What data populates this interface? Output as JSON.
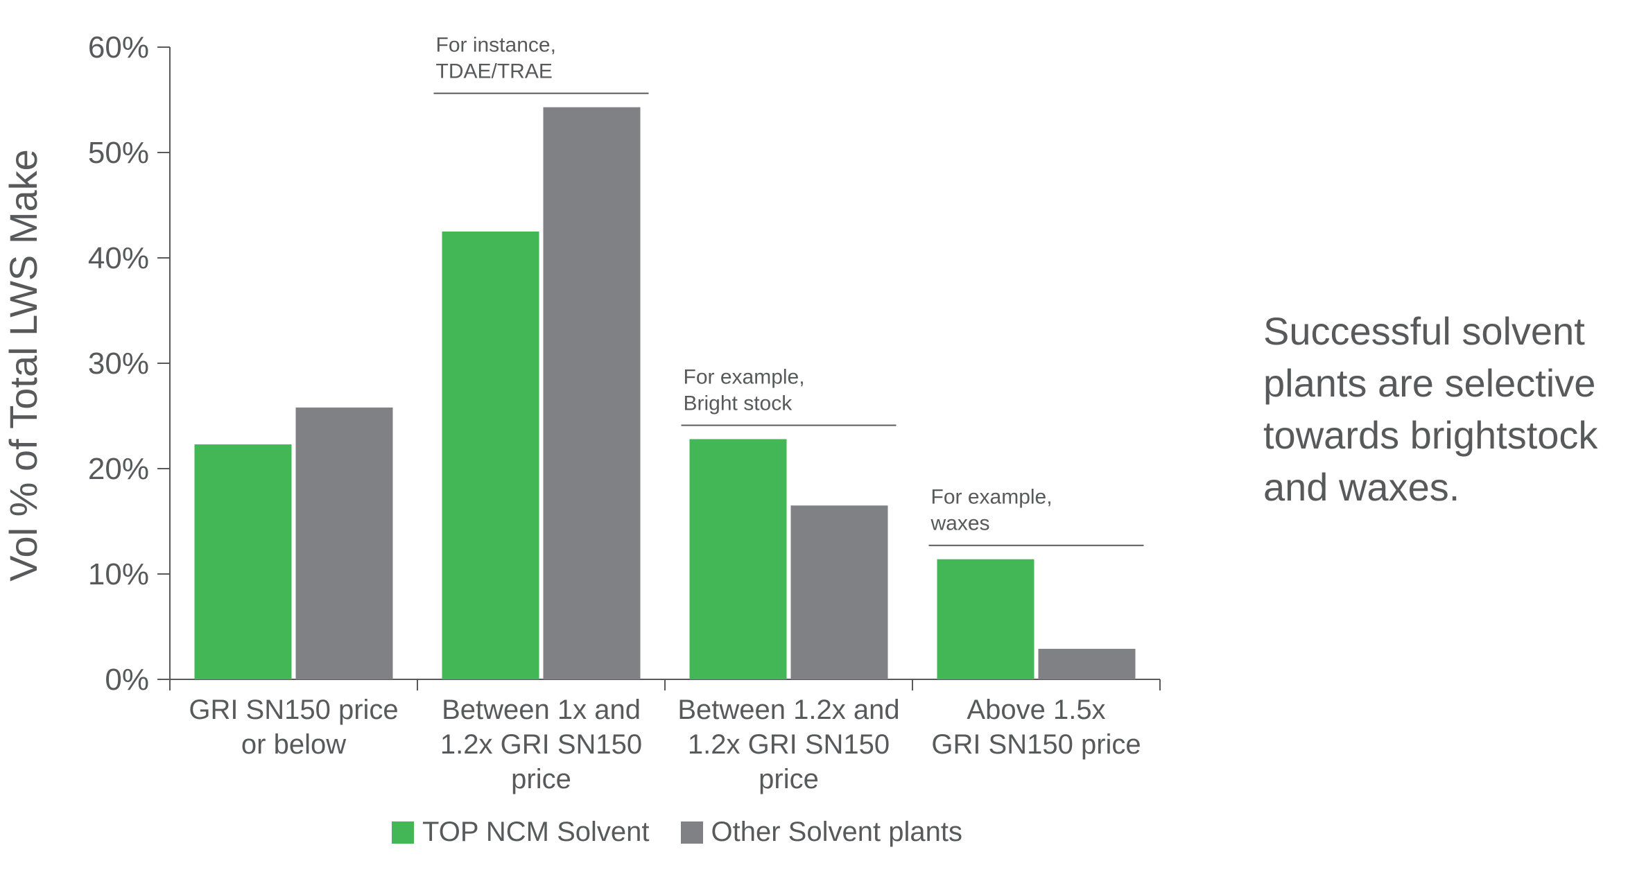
{
  "chart_data": {
    "type": "bar",
    "ylabel": "Vol % of Total LWS Make",
    "xlabel": "",
    "title": "",
    "ylim": [
      0,
      60
    ],
    "yticks": [
      "0%",
      "10%",
      "20%",
      "30%",
      "40%",
      "50%",
      "60%"
    ],
    "categories": [
      [
        "GRI SN150 price",
        "or below"
      ],
      [
        "Between 1x and",
        "1.2x GRI SN150",
        "price"
      ],
      [
        "Between 1.2x and",
        "1.2x GRI SN150",
        "price"
      ],
      [
        "Above 1.5x",
        "GRI SN150 price"
      ]
    ],
    "series": [
      {
        "name": "TOP NCM Solvent",
        "color": "#43b755",
        "values": [
          22.3,
          42.5,
          22.8,
          11.4
        ]
      },
      {
        "name": "Other Solvent plants",
        "color": "#808184",
        "values": [
          25.8,
          54.3,
          16.5,
          2.9
        ]
      }
    ],
    "annotations": [
      {
        "category": 1,
        "lines": [
          "For instance,",
          "TDAE/TRAE"
        ]
      },
      {
        "category": 2,
        "lines": [
          "For example,",
          "Bright stock"
        ]
      },
      {
        "category": 3,
        "lines": [
          "For example,",
          "waxes"
        ]
      }
    ],
    "legend_position": "bottom",
    "grid": false
  },
  "side_note": {
    "lines": [
      "Successful solvent",
      "plants are selective",
      "towards brightstock",
      "and waxes."
    ]
  }
}
